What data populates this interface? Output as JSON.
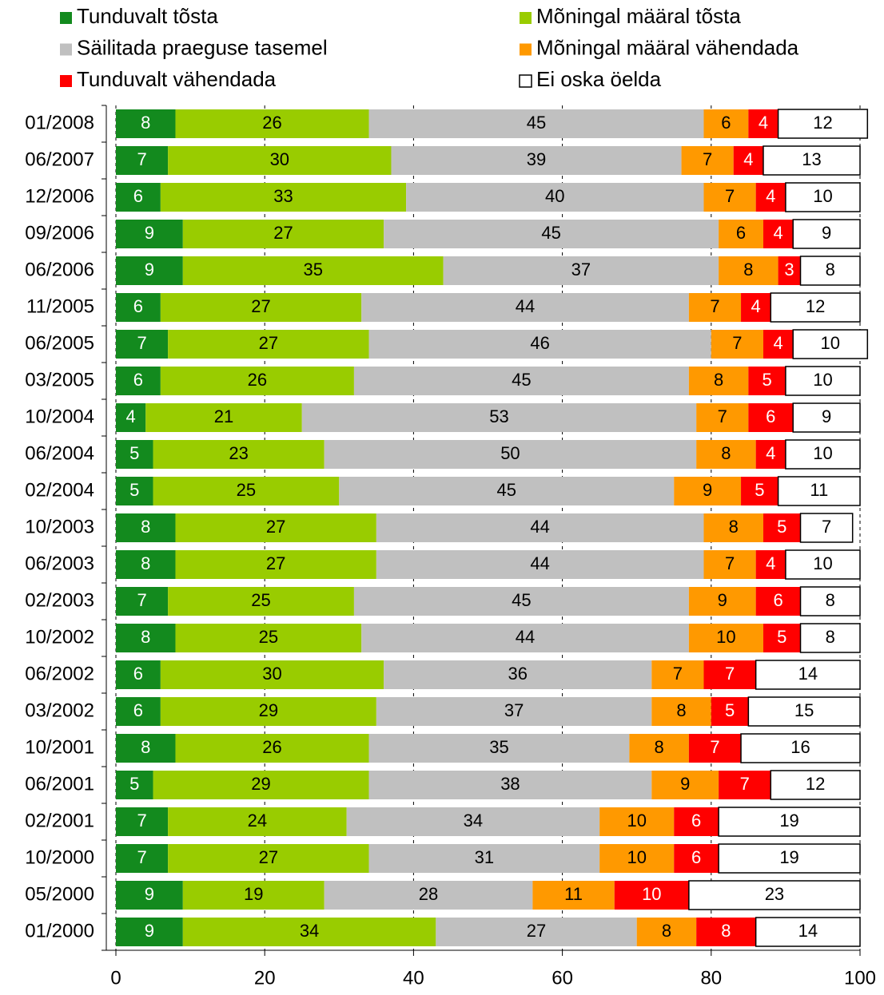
{
  "chart_data": {
    "type": "stacked_bar_horizontal",
    "categories": [
      "01/2008",
      "06/2007",
      "12/2006",
      "09/2006",
      "06/2006",
      "11/2005",
      "06/2005",
      "03/2005",
      "10/2004",
      "06/2004",
      "02/2004",
      "10/2003",
      "06/2003",
      "02/2003",
      "10/2002",
      "06/2002",
      "03/2002",
      "10/2001",
      "06/2001",
      "02/2001",
      "10/2000",
      "05/2000",
      "01/2000"
    ],
    "series": [
      {
        "name": "Tunduvalt tõsta",
        "color": "#138a1e",
        "label_color": "#ffffff",
        "values": [
          8,
          7,
          6,
          9,
          9,
          6,
          7,
          6,
          4,
          5,
          5,
          8,
          8,
          7,
          8,
          6,
          6,
          8,
          5,
          7,
          7,
          9,
          9
        ]
      },
      {
        "name": "Mõningal määral tõsta",
        "color": "#99cc00",
        "label_color": "#000000",
        "values": [
          26,
          30,
          33,
          27,
          35,
          27,
          27,
          26,
          21,
          23,
          25,
          27,
          27,
          25,
          25,
          30,
          29,
          26,
          29,
          24,
          27,
          19,
          34
        ]
      },
      {
        "name": "Säilitada praeguse tasemel",
        "color": "#c0c0c0",
        "label_color": "#000000",
        "values": [
          45,
          39,
          40,
          45,
          37,
          44,
          46,
          45,
          53,
          50,
          45,
          44,
          44,
          45,
          44,
          36,
          37,
          35,
          38,
          34,
          31,
          28,
          27
        ]
      },
      {
        "name": "Mõningal määral vähendada",
        "color": "#ff9900",
        "label_color": "#000000",
        "values": [
          6,
          7,
          7,
          6,
          8,
          7,
          7,
          8,
          7,
          8,
          9,
          8,
          7,
          9,
          10,
          7,
          8,
          8,
          9,
          10,
          10,
          11,
          8
        ]
      },
      {
        "name": "Tunduvalt vähendada",
        "color": "#ff0000",
        "label_color": "#ffffff",
        "values": [
          4,
          4,
          4,
          4,
          3,
          4,
          4,
          5,
          6,
          4,
          5,
          5,
          4,
          6,
          5,
          7,
          5,
          7,
          7,
          6,
          6,
          10,
          8
        ]
      },
      {
        "name": "Ei oska öelda",
        "color": "#ffffff",
        "label_color": "#000000",
        "values": [
          12,
          13,
          10,
          9,
          8,
          12,
          10,
          10,
          9,
          10,
          11,
          7,
          10,
          8,
          8,
          14,
          15,
          16,
          12,
          19,
          19,
          23,
          14
        ]
      }
    ],
    "xlim": [
      0,
      100
    ],
    "xticks": [
      0,
      20,
      40,
      60,
      80,
      100
    ],
    "grid": true
  }
}
